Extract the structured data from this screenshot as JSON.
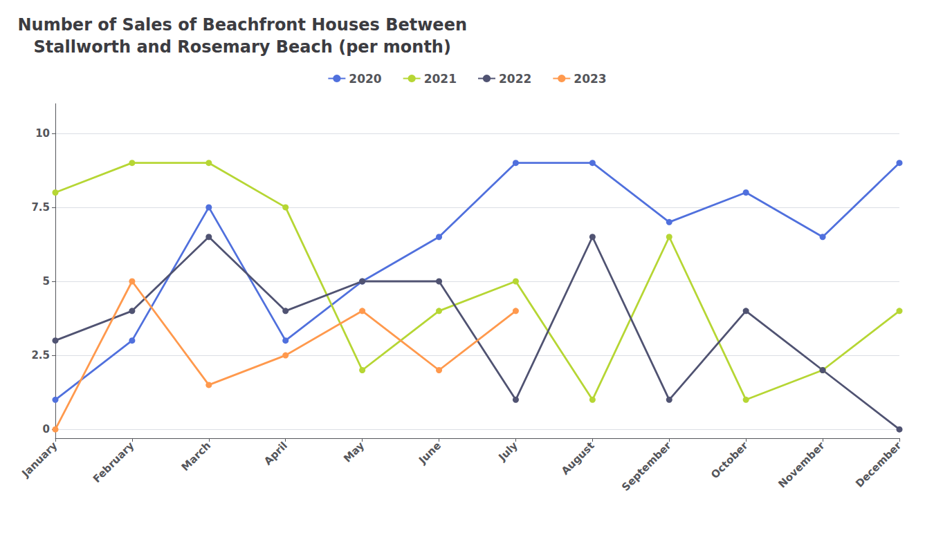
{
  "chart_data": {
    "type": "line",
    "title": "Number of Sales of Beachfront Houses Between\nStallworth and Rosemary Beach (per month)",
    "categories": [
      "January",
      "February",
      "March",
      "April",
      "May",
      "June",
      "July",
      "August",
      "September",
      "October",
      "November",
      "December"
    ],
    "series": [
      {
        "name": "2020",
        "values": [
          1,
          3,
          7.5,
          3,
          5,
          6.5,
          9,
          9,
          7,
          8,
          6.5,
          9
        ]
      },
      {
        "name": "2021",
        "values": [
          8,
          9,
          9,
          7.5,
          2,
          4,
          5,
          1,
          6.5,
          1,
          2,
          4
        ]
      },
      {
        "name": "2022",
        "values": [
          3,
          4,
          6.5,
          4,
          5,
          5,
          1,
          6.5,
          1,
          4,
          2,
          0
        ]
      },
      {
        "name": "2023",
        "values": [
          0,
          5,
          1.5,
          2.5,
          4,
          2,
          4,
          null,
          null,
          null,
          null,
          null
        ]
      }
    ],
    "ylim": [
      -0.3,
      11
    ],
    "yticks": [
      0,
      2.5,
      5,
      7.5,
      10
    ],
    "grid": true,
    "legend": "top",
    "marker": "circle"
  }
}
